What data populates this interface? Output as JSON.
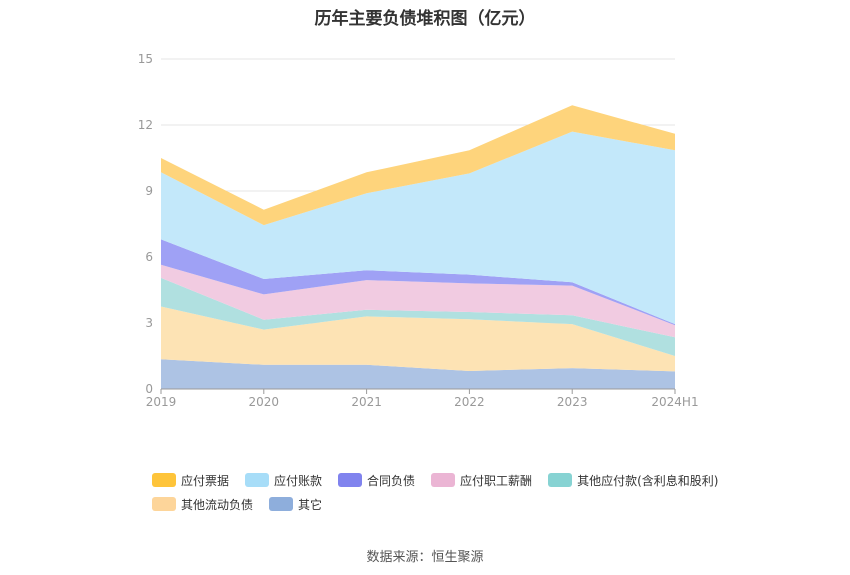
{
  "chart_data": {
    "type": "area",
    "stacked": true,
    "title": "历年主要负债堆积图（亿元）",
    "x": [
      "2019",
      "2020",
      "2021",
      "2022",
      "2023",
      "2024H1"
    ],
    "yticks": [
      "0",
      "3",
      "6",
      "9",
      "12",
      "15"
    ],
    "ylim": [
      0,
      15
    ],
    "grid": true,
    "legend_position": "bottom",
    "series": [
      {
        "name": "其它",
        "color": "#adc3e4",
        "legend_color": "#8eaedc",
        "values": [
          1.35,
          1.1,
          1.1,
          0.82,
          0.95,
          0.8
        ]
      },
      {
        "name": "其他流动负债",
        "color": "#fde3b4",
        "legend_color": "#fdd59a",
        "values": [
          2.4,
          1.6,
          2.2,
          2.35,
          2.0,
          0.7
        ]
      },
      {
        "name": "其他应付款(含利息和股利)",
        "color": "#b0e0e0",
        "legend_color": "#87d3d3",
        "values": [
          1.3,
          0.45,
          0.3,
          0.33,
          0.4,
          0.85
        ]
      },
      {
        "name": "应付职工薪酬",
        "color": "#f1cbe1",
        "legend_color": "#ebb5d4",
        "values": [
          0.6,
          1.15,
          1.35,
          1.3,
          1.35,
          0.55
        ]
      },
      {
        "name": "合同负债",
        "color": "#9fa1f5",
        "legend_color": "#8083ee",
        "values": [
          1.15,
          0.7,
          0.45,
          0.4,
          0.15,
          0.05
        ]
      },
      {
        "name": "应付账款",
        "color": "#c3e8fa",
        "legend_color": "#a7ddf8",
        "values": [
          3.05,
          2.45,
          3.5,
          4.6,
          6.85,
          7.9
        ]
      },
      {
        "name": "应付票据",
        "color": "#fed47c",
        "legend_color": "#fec43a",
        "values": [
          0.65,
          0.7,
          0.95,
          1.05,
          1.2,
          0.75
        ]
      }
    ]
  },
  "legend_order": [
    6,
    5,
    4,
    3,
    2,
    1,
    0
  ],
  "source": "数据来源：恒生聚源"
}
